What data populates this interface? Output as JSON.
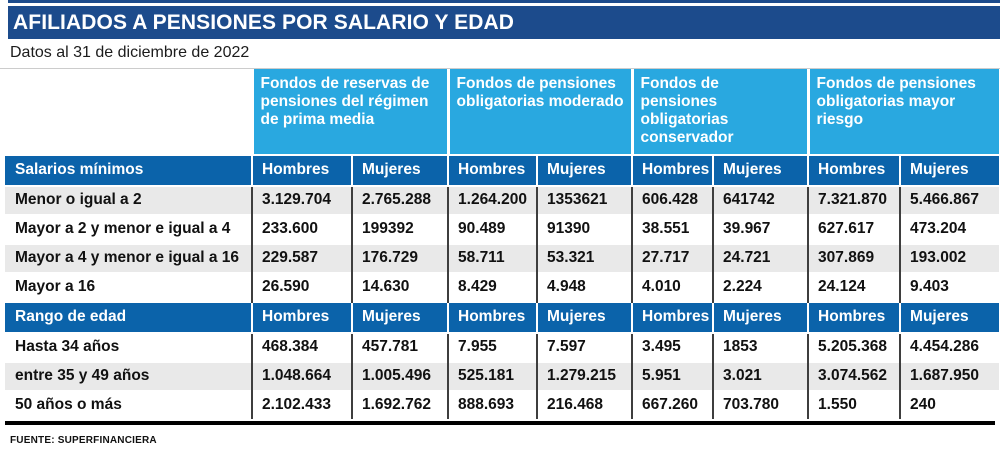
{
  "header": {
    "title": "AFILIADOS A PENSIONES POR SALARIO Y EDAD",
    "subtitle": "Datos al 31 de diciembre de 2022"
  },
  "footer": {
    "source": "FUENTE: SUPERFINANCIERA"
  },
  "colors": {
    "title_band": "#1c4b8c",
    "group_header": "#29a8e0",
    "section_header": "#0b63aa",
    "row_stripe": "#e9e9e9",
    "bottom_rule": "#000000"
  },
  "chart_data": {
    "type": "table",
    "title": "AFILIADOS A PENSIONES POR SALARIO Y EDAD",
    "subtitle": "Datos al 31 de diciembre de 2022",
    "source": "FUENTE: SUPERFINANCIERA",
    "groups": [
      {
        "label": "Fondos de reservas de pensiones del régimen de prima media"
      },
      {
        "label": "Fondos de pensiones obligatorias moderado"
      },
      {
        "label": "Fondos de pensiones obligatorias conservador"
      },
      {
        "label": "Fondos de pensiones obligatorias mayor riesgo"
      }
    ],
    "subheaders": [
      "Hombres",
      "Mujeres"
    ],
    "sections": [
      {
        "label": "Salarios mínimos",
        "rows": [
          {
            "label": "Menor o igual a 2",
            "values": [
              "3.129.704",
              "2.765.288",
              "1.264.200",
              "1353621",
              "606.428",
              "641742",
              "7.321.870",
              "5.466.867"
            ]
          },
          {
            "label": "Mayor a 2 y menor e igual a 4",
            "values": [
              "233.600",
              "199392",
              "90.489",
              "91390",
              "38.551",
              "39.967",
              "627.617",
              "473.204"
            ]
          },
          {
            "label": "Mayor a 4 y menor e igual a 16",
            "values": [
              "229.587",
              "176.729",
              "58.711",
              "53.321",
              "27.717",
              "24.721",
              "307.869",
              "193.002"
            ]
          },
          {
            "label": "Mayor a 16",
            "values": [
              "26.590",
              "14.630",
              "8.429",
              "4.948",
              "4.010",
              "2.224",
              "24.124",
              "9.403"
            ]
          }
        ]
      },
      {
        "label": "Rango de edad",
        "rows": [
          {
            "label": "Hasta 34 años",
            "values": [
              "468.384",
              "457.781",
              "7.955",
              "7.597",
              "3.495",
              "1853",
              "5.205.368",
              "4.454.286"
            ]
          },
          {
            "label": "entre 35 y 49 años",
            "values": [
              "1.048.664",
              "1.005.496",
              "525.181",
              "1.279.215",
              "5.951",
              "3.021",
              "3.074.562",
              "1.687.950"
            ]
          },
          {
            "label": "50 años o más",
            "values": [
              "2.102.433",
              "1.692.762",
              "888.693",
              "216.468",
              "667.260",
              "703.780",
              "1.550",
              "240"
            ]
          }
        ]
      }
    ]
  }
}
